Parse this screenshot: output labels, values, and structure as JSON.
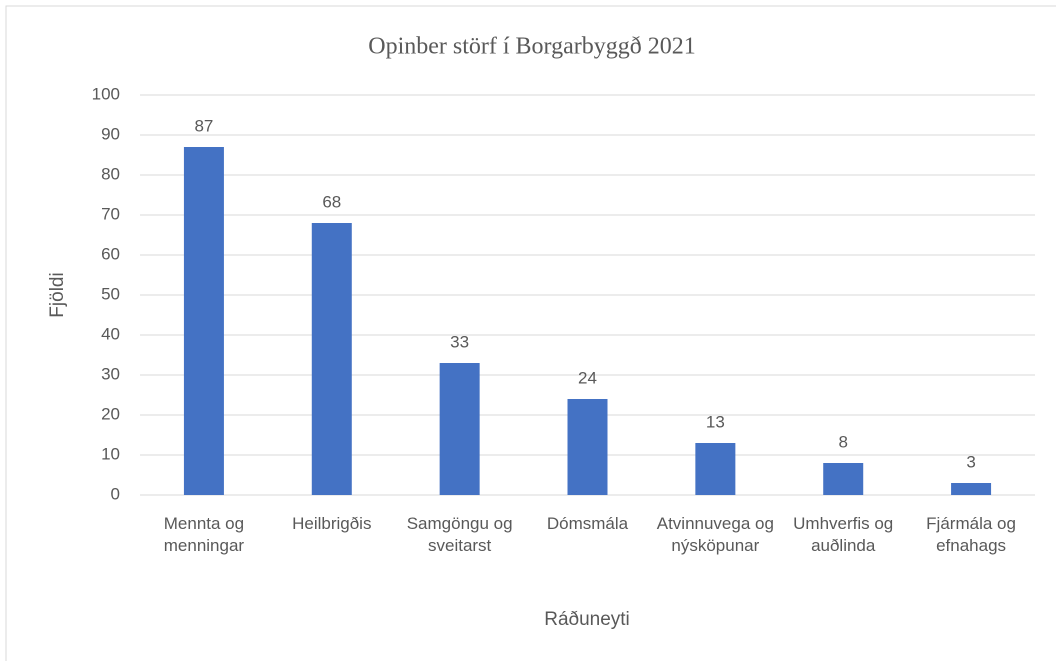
{
  "chart_data": {
    "type": "bar",
    "title": "Opinber störf í Borgarbyggð 2021",
    "x_label": "Ráðuneyti",
    "y_label": "Fjöldi",
    "categories": [
      "Mennta og menningar",
      "Heilbrigðis",
      "Samgöngu og sveitarst",
      "Dómsmála",
      "Atvinnuvega og nýsköpunar",
      "Umhverfis og auðlinda",
      "Fjármála og efnahags"
    ],
    "values": [
      87,
      68,
      33,
      24,
      13,
      8,
      3
    ],
    "color": "#4472c4",
    "ylim": [
      0,
      100
    ],
    "yticks": [
      0,
      10,
      20,
      30,
      40,
      50,
      60,
      70,
      80,
      90,
      100
    ],
    "grid": true
  }
}
